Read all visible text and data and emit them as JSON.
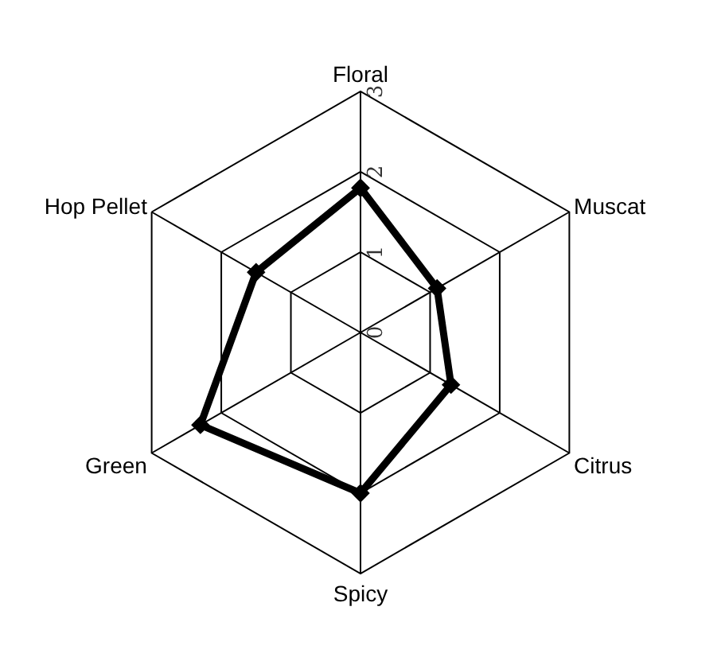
{
  "chart_data": {
    "type": "radar",
    "categories": [
      "Floral",
      "Muscat",
      "Citrus",
      "Spicy",
      "Green",
      "Hop Pellet"
    ],
    "series": [
      {
        "color": "#000000",
        "values": [
          1.8,
          1.1,
          1.3,
          2.0,
          2.3,
          1.5
        ]
      }
    ],
    "ylim": [
      0,
      3
    ],
    "yticks": [
      0,
      1,
      2,
      3
    ],
    "grid": true,
    "marker": "diamond",
    "line_style": "solid"
  }
}
